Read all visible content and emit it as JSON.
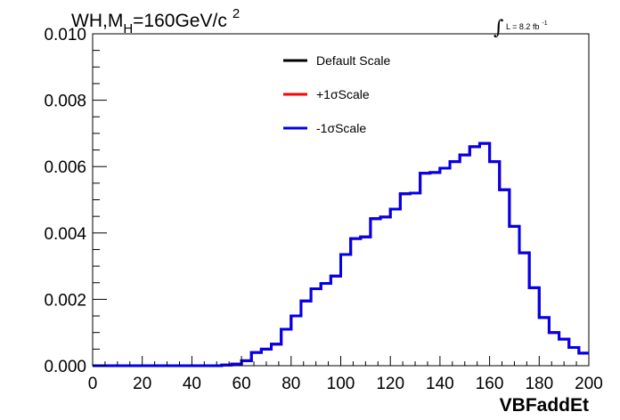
{
  "chart_data": {
    "type": "line",
    "style": "step-histogram",
    "title_main": "WH,M",
    "title_sub": "H",
    "title_rest": "=160GeV/c",
    "title_sup": "2",
    "lumi_integral": "∫",
    "lumi_text": "L = 8.2 fb",
    "lumi_sup": "-1",
    "xlabel": "VBFaddEt",
    "ylabel": "",
    "xlim": [
      0,
      200
    ],
    "ylim": [
      0,
      0.01
    ],
    "x_ticks": [
      "0",
      "20",
      "40",
      "60",
      "80",
      "100",
      "120",
      "140",
      "160",
      "180",
      "200"
    ],
    "y_ticks": [
      "0.000",
      "0.002",
      "0.004",
      "0.006",
      "0.008",
      "0.010"
    ],
    "grid": false,
    "legend_position": "top-center",
    "bin_width": 4,
    "bin_edges_start": 0,
    "series": [
      {
        "name": "Default Scale",
        "color": "#000000",
        "values": [
          0,
          0,
          0,
          0,
          0,
          0,
          0,
          0,
          0,
          0,
          0,
          0,
          0,
          2e-05,
          5e-05,
          0.00015,
          0.0004,
          0.0005,
          0.00065,
          0.0011,
          0.0015,
          0.00195,
          0.00232,
          0.00248,
          0.0027,
          0.00335,
          0.00383,
          0.00388,
          0.00443,
          0.00448,
          0.00472,
          0.00518,
          0.0052,
          0.0058,
          0.00582,
          0.00595,
          0.00615,
          0.00635,
          0.0066,
          0.0067,
          0.00615,
          0.0053,
          0.0042,
          0.0034,
          0.00235,
          0.00145,
          0.001,
          0.0008,
          0.00055,
          0.00038
        ]
      },
      {
        "name": "+1σScale",
        "color": "#ff0000",
        "values": [
          0,
          0,
          0,
          0,
          0,
          0,
          0,
          0,
          0,
          0,
          0,
          0,
          0,
          2e-05,
          5e-05,
          0.00015,
          0.0004,
          0.0005,
          0.00065,
          0.0011,
          0.0015,
          0.00195,
          0.00232,
          0.00248,
          0.0027,
          0.00335,
          0.00383,
          0.00388,
          0.00443,
          0.00448,
          0.00472,
          0.00518,
          0.0052,
          0.0058,
          0.00582,
          0.00595,
          0.00615,
          0.00635,
          0.0066,
          0.0067,
          0.00615,
          0.0053,
          0.0042,
          0.0034,
          0.00235,
          0.00145,
          0.001,
          0.0008,
          0.00055,
          0.00038
        ]
      },
      {
        "name": "-1σScale",
        "color": "#0000ee",
        "values": [
          0,
          0,
          0,
          0,
          0,
          0,
          0,
          0,
          0,
          0,
          0,
          0,
          0,
          2e-05,
          5e-05,
          0.00015,
          0.0004,
          0.0005,
          0.00065,
          0.0011,
          0.0015,
          0.00195,
          0.00232,
          0.00248,
          0.0027,
          0.00335,
          0.00383,
          0.00388,
          0.00443,
          0.00448,
          0.00472,
          0.00518,
          0.0052,
          0.0058,
          0.00582,
          0.00595,
          0.00615,
          0.00635,
          0.0066,
          0.0067,
          0.00615,
          0.0053,
          0.0042,
          0.0034,
          0.00235,
          0.00145,
          0.001,
          0.0008,
          0.00055,
          0.00038
        ]
      }
    ]
  }
}
